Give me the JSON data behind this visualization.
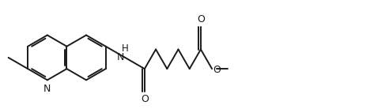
{
  "background_color": "#ffffff",
  "line_color": "#1a1a1a",
  "line_width": 1.4,
  "font_size": 8.5,
  "figsize": [
    4.92,
    1.38
  ],
  "dpi": 100,
  "bl": 0.29,
  "xlim": [
    0.0,
    4.92
  ],
  "ylim": [
    0.0,
    1.38
  ],
  "N_label": "N",
  "O_label": "O",
  "NH_label": "H",
  "methyl_label": "",
  "ester_O_label": "O"
}
